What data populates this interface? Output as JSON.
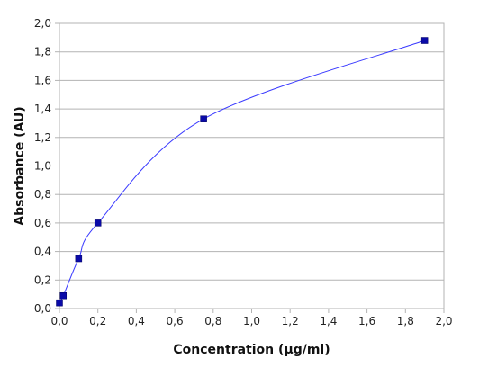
{
  "chart_data": {
    "type": "scatter",
    "title": "",
    "xlabel": "Concentration (µg/ml)",
    "ylabel": "Absorbance (AU)",
    "xlim": [
      0,
      2
    ],
    "ylim": [
      0,
      2
    ],
    "xticks": [
      "0,0",
      "0,2",
      "0,4",
      "0,6",
      "0,8",
      "1,0",
      "1,2",
      "1,4",
      "1,6",
      "1,8",
      "2,0"
    ],
    "yticks": [
      "0,0",
      "0,2",
      "0,4",
      "0,6",
      "0,8",
      "1,0",
      "1,2",
      "1,4",
      "1,6",
      "1,8",
      "2,0"
    ],
    "grid": "horizontal",
    "legend": "none",
    "series": [
      {
        "x": [
          0.0,
          0.02,
          0.1,
          0.2,
          0.75,
          1.9
        ],
        "y": [
          0.04,
          0.09,
          0.35,
          0.6,
          1.33,
          1.88
        ],
        "marker": "square",
        "marker_color": "#0a0aa8",
        "line": "smooth",
        "line_color": "#3a3aff"
      }
    ]
  }
}
